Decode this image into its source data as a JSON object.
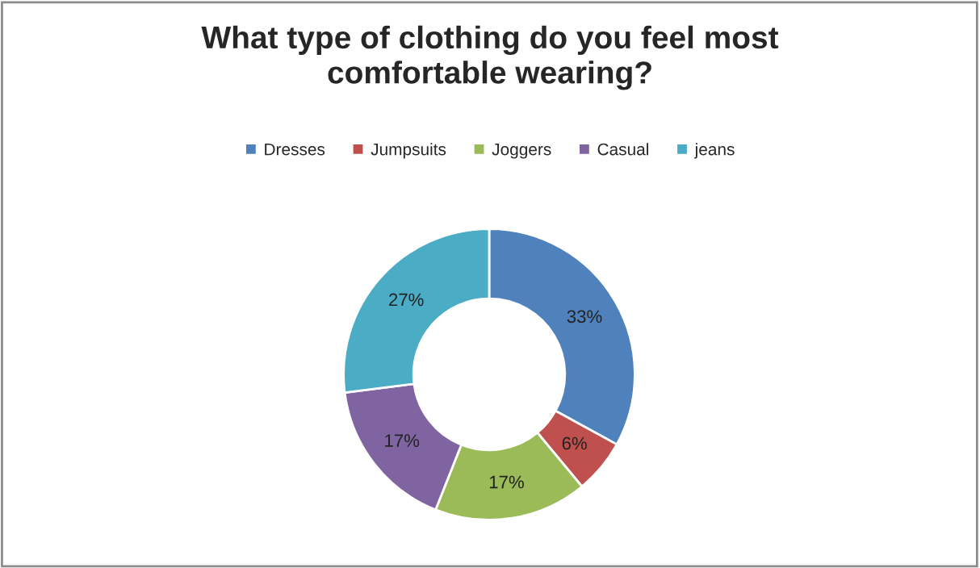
{
  "chart_data": {
    "type": "donut",
    "title": "What type of clothing do you feel most\ncomfortable wearing?",
    "categories": [
      "Dresses",
      "Jumpsuits",
      "Joggers",
      "Casual",
      "jeans"
    ],
    "values": [
      33,
      6,
      17,
      17,
      27
    ],
    "value_labels": [
      "33%",
      "6%",
      "17%",
      "17%",
      "27%"
    ],
    "colors": [
      "#4f81bd",
      "#c0504d",
      "#9bbb59",
      "#8064a2",
      "#4bacc6"
    ],
    "legend": "top"
  }
}
